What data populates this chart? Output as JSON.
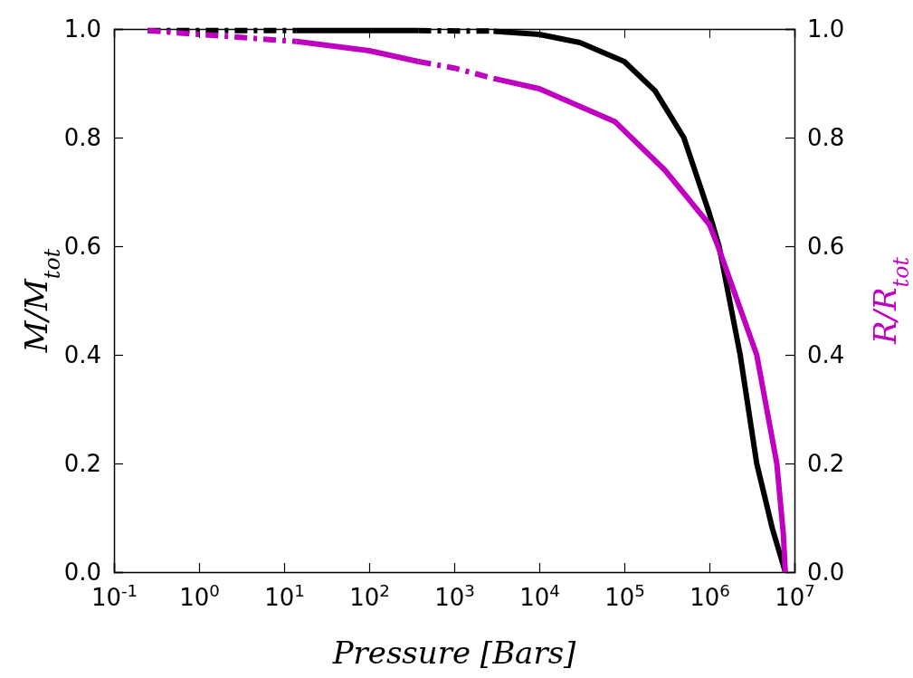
{
  "chart_data": {
    "type": "line",
    "xlabel": "Pressure [Bars]",
    "ylabel": "M/M$_{tot}$",
    "y2label": "R/R$_{tot}$",
    "log": "x",
    "xlim": [
      0.1,
      10000000
    ],
    "xticks": [
      {
        "value": 0.1,
        "label": "10$^{-1}$"
      },
      {
        "value": 1,
        "label": "10$^{0}$"
      },
      {
        "value": 10,
        "label": "10$^{1}$"
      },
      {
        "value": 100,
        "label": "10$^{2}$"
      },
      {
        "value": 1000,
        "label": "10$^{3}$"
      },
      {
        "value": 10000,
        "label": "10$^{4}$"
      },
      {
        "value": 100000,
        "label": "10$^{5}$"
      },
      {
        "value": 1000000,
        "label": "10$^{6}$"
      },
      {
        "value": 10000000,
        "label": "10$^{7}$"
      }
    ],
    "ylim": [
      0,
      1
    ],
    "yticks": [
      {
        "value": 0,
        "label": "0.0"
      },
      0.2,
      0.4,
      0.6,
      0.8,
      {
        "value": 1,
        "label": "1.0"
      }
    ],
    "y2lim": [
      0,
      1
    ],
    "y2ticks": [
      {
        "value": 0,
        "label": "0.0"
      },
      0.2,
      0.4,
      0.6,
      0.8,
      {
        "value": 1,
        "label": "1.0"
      }
    ],
    "grid": false,
    "series": [
      {
        "color": "#000000",
        "line_style": "dashed",
        "x": [
          0.25,
          14
        ],
        "values": [
          0.997,
          0.997
        ]
      },
      {
        "color": "#000000",
        "line_style": "solid",
        "x": [
          14,
          380
        ],
        "values": [
          0.997,
          0.997
        ]
      },
      {
        "color": "#000000",
        "line_style": "dashed",
        "x": [
          380,
          2900
        ],
        "values": [
          0.997,
          0.996
        ]
      },
      {
        "color": "#000000",
        "line_style": "solid",
        "x": [
          2900,
          10000,
          30000,
          100000,
          230000,
          500000,
          1000000,
          1300000,
          2300000,
          3600000,
          5500000,
          7800000
        ],
        "values": [
          0.996,
          0.99,
          0.975,
          0.94,
          0.886,
          0.8,
          0.66,
          0.6,
          0.4,
          0.2,
          0.08,
          0
        ]
      },
      {
        "color": "#c000c0",
        "axis": "y2",
        "line_style": "dashed",
        "x": [
          0.25,
          1,
          14
        ],
        "values": [
          0.997,
          0.99,
          0.977
        ]
      },
      {
        "color": "#c000c0",
        "axis": "y2",
        "line_style": "solid",
        "x": [
          14,
          100,
          380
        ],
        "values": [
          0.977,
          0.96,
          0.94
        ]
      },
      {
        "color": "#c000c0",
        "axis": "y2",
        "line_style": "dashed",
        "x": [
          380,
          1000,
          2900
        ],
        "values": [
          0.94,
          0.928,
          0.909
        ]
      },
      {
        "color": "#c000c0",
        "axis": "y2",
        "line_style": "solid",
        "x": [
          2900,
          10000,
          78000,
          300000,
          1000000,
          1260000,
          3600000,
          6200000,
          7400000,
          7800000
        ],
        "values": [
          0.909,
          0.89,
          0.829,
          0.74,
          0.64,
          0.6,
          0.4,
          0.2,
          0.07,
          0
        ]
      }
    ]
  }
}
